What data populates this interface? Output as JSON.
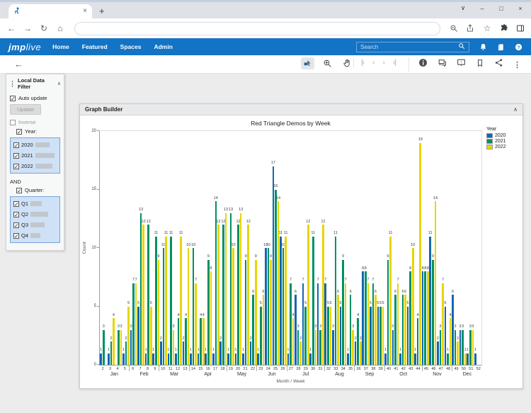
{
  "browser": {
    "tab": {
      "title": "",
      "close_glyph": "×"
    },
    "new_tab_glyph": "+",
    "window_controls": {
      "menu": "∨",
      "minimize": "–",
      "maximize": "□",
      "close": "×"
    },
    "address": {
      "back": "←",
      "forward": "→",
      "reload": "↻",
      "home": "⌂",
      "url_value": "",
      "star": "☆"
    }
  },
  "nav": {
    "brand_jmp": "jmp",
    "brand_live": "live",
    "items": [
      "Home",
      "Featured",
      "Spaces",
      "Admin"
    ],
    "search": {
      "placeholder": "Search"
    }
  },
  "pager": {
    "first": "|‹",
    "prev": "‹",
    "next": "›",
    "last": "›|"
  },
  "filter": {
    "title": "Local Data Filter",
    "collapse_glyph": "∧",
    "kebab_glyph": "⋮",
    "check_glyph": "✓",
    "auto_update": "Auto update",
    "update": "Update",
    "inverse": "Inverse",
    "and": "AND",
    "groups": [
      {
        "label": "Year:",
        "options": [
          {
            "label": "2020",
            "bar": 20
          },
          {
            "label": "2021",
            "bar": 27
          },
          {
            "label": "2022",
            "bar": 24
          }
        ]
      },
      {
        "label": "Quarter:",
        "options": [
          {
            "label": "Q1",
            "bar": 16
          },
          {
            "label": "Q2",
            "bar": 25
          },
          {
            "label": "Q3",
            "bar": 20
          },
          {
            "label": "Q4",
            "bar": 14
          }
        ]
      }
    ]
  },
  "graph_panel": {
    "title": "Graph Builder",
    "collapse_glyph": "∧"
  },
  "chart_data": {
    "type": "bar",
    "title": "Red Triangle Demos by Week",
    "xlabel": "Month / Week",
    "ylabel": "Count",
    "ylim": [
      0,
      20
    ],
    "yticks": [
      0,
      5,
      10,
      15,
      20
    ],
    "legend_position": "right",
    "legend_title": "Year",
    "series": [
      {
        "name": "2020",
        "color": "#1565b0"
      },
      {
        "name": "2021",
        "color": "#009064"
      },
      {
        "name": "2022",
        "color": "#e8d500"
      }
    ],
    "months": [
      {
        "name": "Jan",
        "weeks": [
          {
            "w": 2,
            "v": [
              1,
              3,
              null
            ]
          },
          {
            "w": 3,
            "v": [
              1,
              2,
              4
            ]
          },
          {
            "w": 4,
            "v": [
              null,
              3,
              3
            ]
          },
          {
            "w": 5,
            "v": [
              1,
              2,
              5
            ]
          }
        ]
      },
      {
        "name": "Feb",
        "weeks": [
          {
            "w": 6,
            "v": [
              3,
              7,
              7
            ]
          },
          {
            "w": 7,
            "v": [
              5,
              13,
              12
            ]
          },
          {
            "w": 8,
            "v": [
              1,
              12,
              5
            ]
          },
          {
            "w": 9,
            "v": [
              1,
              11,
              9
            ]
          }
        ]
      },
      {
        "name": "Mar",
        "weeks": [
          {
            "w": 10,
            "v": [
              2,
              10,
              11
            ]
          },
          {
            "w": 11,
            "v": [
              1,
              11,
              3
            ]
          },
          {
            "w": 12,
            "v": [
              1,
              4,
              11
            ]
          },
          {
            "w": 13,
            "v": [
              2,
              4,
              10
            ]
          }
        ]
      },
      {
        "name": "Apr",
        "weeks": [
          {
            "w": 14,
            "v": [
              1,
              10,
              7
            ]
          },
          {
            "w": 15,
            "v": [
              1,
              4,
              4
            ]
          },
          {
            "w": 16,
            "v": [
              1,
              9,
              8
            ]
          },
          {
            "w": 17,
            "v": [
              1,
              14,
              12
            ]
          },
          {
            "w": 18,
            "v": [
              2,
              12,
              13
            ]
          }
        ]
      },
      {
        "name": "May",
        "weeks": [
          {
            "w": 19,
            "v": [
              1,
              13,
              10
            ]
          },
          {
            "w": 20,
            "v": [
              1,
              12,
              13
            ]
          },
          {
            "w": 21,
            "v": [
              1,
              9,
              12
            ]
          },
          {
            "w": 22,
            "v": [
              2,
              6,
              9
            ]
          }
        ]
      },
      {
        "name": "Jun",
        "weeks": [
          {
            "w": 23,
            "v": [
              1,
              5,
              6
            ]
          },
          {
            "w": 24,
            "v": [
              10,
              10,
              9
            ]
          },
          {
            "w": 25,
            "v": [
              17,
              15,
              14
            ]
          },
          {
            "w": 26,
            "v": [
              11,
              10,
              11
            ]
          }
        ]
      },
      {
        "name": "Jul",
        "weeks": [
          {
            "w": 27,
            "v": [
              1,
              7,
              4
            ]
          },
          {
            "w": 28,
            "v": [
              6,
              3,
              2
            ]
          },
          {
            "w": 29,
            "v": [
              7,
              5,
              12
            ]
          },
          {
            "w": 30,
            "v": [
              1,
              11,
              3
            ]
          },
          {
            "w": 31,
            "v": [
              7,
              3,
              12
            ]
          }
        ]
      },
      {
        "name": "Aug",
        "weeks": [
          {
            "w": 32,
            "v": [
              7,
              5,
              5
            ]
          },
          {
            "w": 33,
            "v": [
              3,
              11,
              6
            ]
          },
          {
            "w": 34,
            "v": [
              5,
              9,
              7
            ]
          },
          {
            "w": 35,
            "v": [
              1,
              6,
              3
            ]
          }
        ]
      },
      {
        "name": "Sep",
        "weeks": [
          {
            "w": 36,
            "v": [
              2,
              4,
              2
            ]
          },
          {
            "w": 37,
            "v": [
              8,
              8,
              7
            ]
          },
          {
            "w": 38,
            "v": [
              5,
              7,
              6
            ]
          },
          {
            "w": 39,
            "v": [
              5,
              5,
              5
            ]
          }
        ]
      },
      {
        "name": "Oct",
        "weeks": [
          {
            "w": 40,
            "v": [
              1,
              9,
              11
            ]
          },
          {
            "w": 41,
            "v": [
              3,
              6,
              7
            ]
          },
          {
            "w": 42,
            "v": [
              1,
              6,
              6
            ]
          },
          {
            "w": 43,
            "v": [
              5,
              8,
              10
            ]
          },
          {
            "w": 44,
            "v": [
              1,
              4,
              19
            ]
          }
        ]
      },
      {
        "name": "Nov",
        "weeks": [
          {
            "w": 45,
            "v": [
              8,
              8,
              8
            ]
          },
          {
            "w": 46,
            "v": [
              11,
              9,
              14
            ]
          },
          {
            "w": 47,
            "v": [
              2,
              3,
              7
            ]
          },
          {
            "w": 48,
            "v": [
              5,
              1,
              4
            ]
          }
        ]
      },
      {
        "name": "Dec",
        "weeks": [
          {
            "w": 49,
            "v": [
              6,
              3,
              2
            ]
          },
          {
            "w": 50,
            "v": [
              3,
              3,
              1
            ]
          },
          {
            "w": 51,
            "v": [
              1,
              3,
              3
            ]
          },
          {
            "w": 52,
            "v": [
              1,
              null,
              null
            ]
          }
        ]
      }
    ]
  }
}
